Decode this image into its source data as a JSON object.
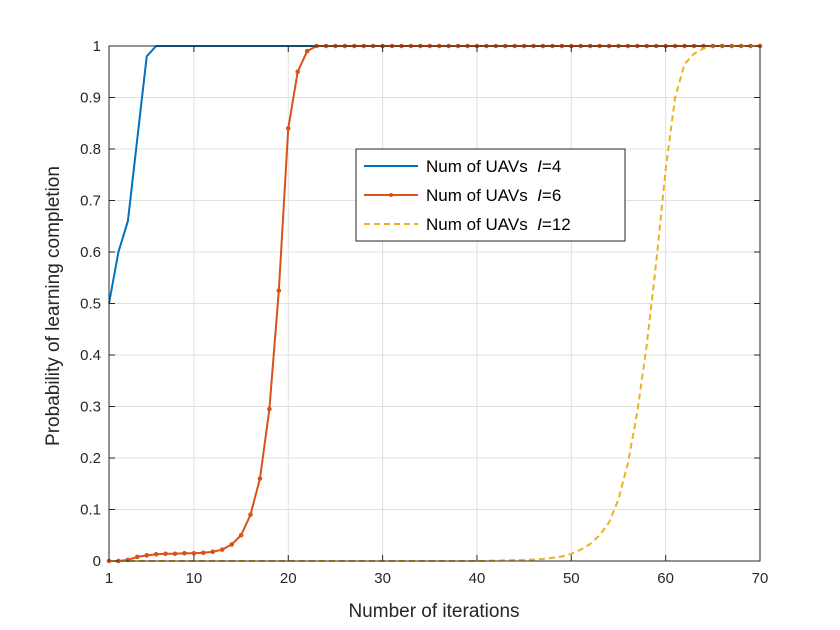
{
  "chart_data": {
    "type": "line",
    "title": "",
    "xlabel": "Number of iterations",
    "ylabel": "Probability of learning completion",
    "xlim": [
      1,
      70
    ],
    "ylim": [
      0,
      1
    ],
    "xticks": [
      1,
      10,
      20,
      30,
      40,
      50,
      60,
      70
    ],
    "yticks": [
      0,
      0.1,
      0.2,
      0.3,
      0.4,
      0.5,
      0.6,
      0.7,
      0.8,
      0.9,
      1
    ],
    "grid": true,
    "legend_position": "center-right",
    "series": [
      {
        "name": "Num of UAVs",
        "name_var": "I",
        "name_value": "=4",
        "color": "#0072BD",
        "style": "solid",
        "marker": "none",
        "x": [
          1,
          2,
          3,
          4,
          5,
          6,
          7,
          8,
          10,
          15,
          20,
          23,
          30,
          40,
          50,
          60,
          70
        ],
        "y": [
          0.5,
          0.6,
          0.66,
          0.82,
          0.98,
          1.0,
          1.0,
          1.0,
          1.0,
          1.0,
          1.0,
          1.0,
          1.0,
          1.0,
          1.0,
          1.0,
          1.0
        ]
      },
      {
        "name": "Num of UAVs",
        "name_var": "I",
        "name_value": "=6",
        "color": "#D95319",
        "style": "solid",
        "marker": "dot",
        "x": [
          1,
          2,
          3,
          4,
          5,
          6,
          7,
          8,
          9,
          10,
          11,
          12,
          13,
          14,
          15,
          16,
          17,
          18,
          19,
          20,
          21,
          22,
          23,
          24,
          25,
          26,
          27,
          28,
          29,
          30,
          31,
          32,
          33,
          34,
          35,
          36,
          37,
          38,
          39,
          40,
          41,
          42,
          43,
          44,
          45,
          46,
          47,
          48,
          49,
          50,
          51,
          52,
          53,
          54,
          55,
          56,
          57,
          58,
          59,
          60,
          61,
          62,
          63,
          64,
          65,
          66,
          67,
          68,
          69,
          70
        ],
        "y": [
          0.0,
          0.0,
          0.002,
          0.008,
          0.011,
          0.013,
          0.014,
          0.014,
          0.015,
          0.015,
          0.016,
          0.018,
          0.022,
          0.032,
          0.05,
          0.09,
          0.16,
          0.295,
          0.525,
          0.84,
          0.95,
          0.99,
          1.0,
          1.0,
          1.0,
          1.0,
          1.0,
          1.0,
          1.0,
          1.0,
          1.0,
          1.0,
          1.0,
          1.0,
          1.0,
          1.0,
          1.0,
          1.0,
          1.0,
          1.0,
          1.0,
          1.0,
          1.0,
          1.0,
          1.0,
          1.0,
          1.0,
          1.0,
          1.0,
          1.0,
          1.0,
          1.0,
          1.0,
          1.0,
          1.0,
          1.0,
          1.0,
          1.0,
          1.0,
          1.0,
          1.0,
          1.0,
          1.0,
          1.0,
          1.0,
          1.0,
          1.0,
          1.0,
          1.0,
          1.0
        ]
      },
      {
        "name": "Num of UAVs",
        "name_var": "I",
        "name_value": "=12",
        "color": "#EDB120",
        "style": "dashed",
        "marker": "none",
        "x": [
          1,
          40,
          45,
          47,
          48,
          49,
          50,
          51,
          52,
          53,
          54,
          55,
          56,
          57,
          58,
          59,
          60,
          61,
          62,
          63,
          64,
          65,
          66,
          70
        ],
        "y": [
          0.0,
          0.0,
          0.002,
          0.004,
          0.006,
          0.009,
          0.014,
          0.022,
          0.033,
          0.05,
          0.075,
          0.12,
          0.19,
          0.29,
          0.42,
          0.58,
          0.76,
          0.9,
          0.965,
          0.985,
          0.995,
          1.0,
          1.0,
          1.0
        ]
      }
    ]
  }
}
